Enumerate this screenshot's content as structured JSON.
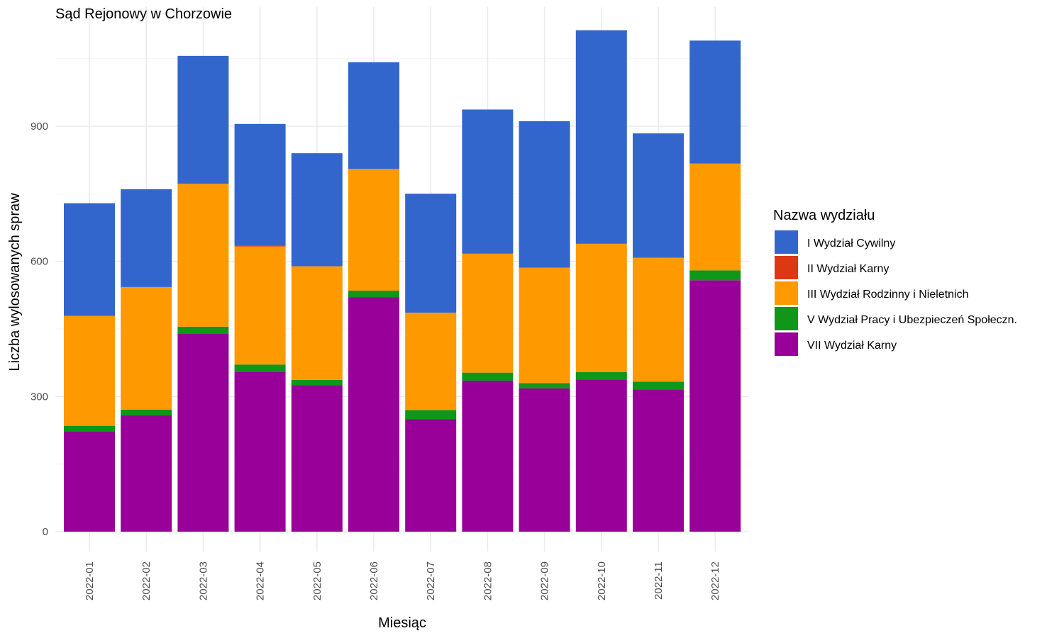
{
  "chart_data": {
    "type": "bar",
    "stacked": true,
    "title": "Sąd Rejonowy w Chorzowie",
    "xlabel": "Miesiąc",
    "ylabel": "Liczba wylosowanych spraw",
    "ylim": [
      0,
      1160
    ],
    "yticks": [
      0,
      300,
      600,
      900
    ],
    "grid": true,
    "legend_title": "Nazwa wydziału",
    "legend_position": "right",
    "categories": [
      "2022-01",
      "2022-02",
      "2022-03",
      "2022-04",
      "2022-05",
      "2022-06",
      "2022-07",
      "2022-08",
      "2022-09",
      "2022-10",
      "2022-11",
      "2022-12"
    ],
    "series": [
      {
        "name": "VII Wydział Karny",
        "color": "#990099",
        "values": [
          223,
          258,
          440,
          355,
          325,
          520,
          250,
          335,
          318,
          338,
          316,
          558
        ]
      },
      {
        "name": "V Wydział Pracy i Ubezpieczeń Społeczn.",
        "color": "#109618",
        "values": [
          12,
          13,
          15,
          16,
          12,
          15,
          20,
          18,
          12,
          16,
          17,
          22
        ]
      },
      {
        "name": "III Wydział Rodzinny i Nieletnich",
        "color": "#ff9900",
        "values": [
          244,
          272,
          317,
          262,
          252,
          270,
          216,
          264,
          256,
          285,
          275,
          237
        ]
      },
      {
        "name": "II Wydział Karny",
        "color": "#dc3912",
        "values": [
          0,
          0,
          0,
          2,
          0,
          0,
          0,
          0,
          0,
          0,
          1,
          0
        ]
      },
      {
        "name": "I Wydział Cywilny",
        "color": "#3366cc",
        "values": [
          250,
          217,
          284,
          270,
          251,
          237,
          264,
          320,
          325,
          474,
          275,
          273
        ]
      }
    ],
    "legend_order": [
      "I Wydział Cywilny",
      "II Wydział Karny",
      "III Wydział Rodzinny i Nieletnich",
      "V Wydział Pracy i Ubezpieczeń Społeczn.",
      "VII Wydział Karny"
    ]
  }
}
